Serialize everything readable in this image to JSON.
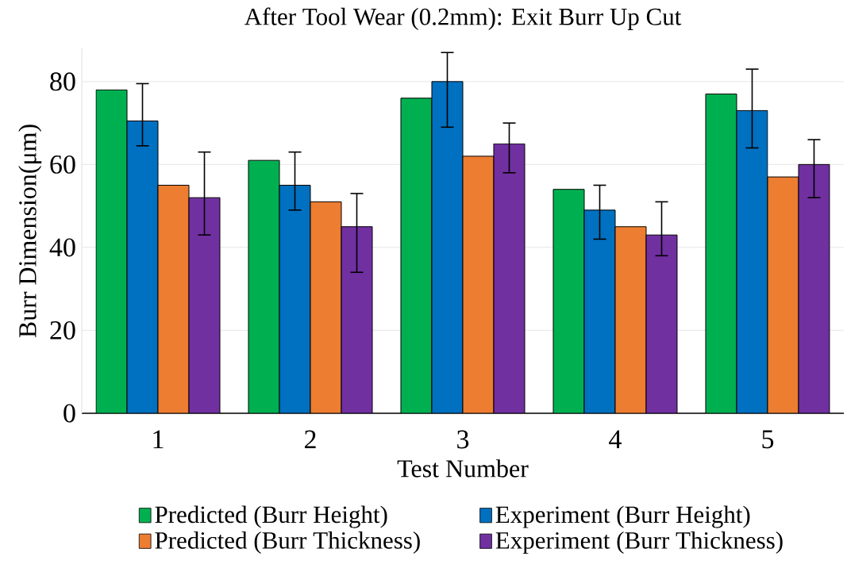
{
  "chart_data": {
    "type": "bar",
    "title": "After Tool Wear (0.2mm): Exit Burr Up Cut",
    "xlabel": "Test Number",
    "ylabel": "Burr Dimension(μm)",
    "categories": [
      "1",
      "2",
      "3",
      "4",
      "5"
    ],
    "series": [
      {
        "name": "Predicted (Burr Height)",
        "color": "#00b050",
        "values": [
          78,
          61,
          76,
          54,
          77
        ]
      },
      {
        "name": "Experiment (Burr Height)",
        "color": "#0070c0",
        "values": [
          70.5,
          55,
          80,
          49,
          73
        ],
        "errors": [
          [
            64.5,
            79.5
          ],
          [
            49,
            63
          ],
          [
            69,
            87
          ],
          [
            42,
            55
          ],
          [
            64,
            83
          ]
        ]
      },
      {
        "name": "Predicted (Burr Thickness)",
        "color": "#ed7d31",
        "values": [
          55,
          51,
          62,
          45,
          57
        ]
      },
      {
        "name": "Experiment (Burr Thickness)",
        "color": "#7030a0",
        "values": [
          52,
          45,
          65,
          43,
          60
        ],
        "errors": [
          [
            43,
            63
          ],
          [
            34,
            53
          ],
          [
            58,
            70
          ],
          [
            38,
            51
          ],
          [
            52,
            66
          ]
        ]
      }
    ],
    "ylim": [
      0,
      88
    ],
    "yticks": [
      0,
      20,
      40,
      60,
      80
    ],
    "grid": "y",
    "legend": "bottom"
  }
}
